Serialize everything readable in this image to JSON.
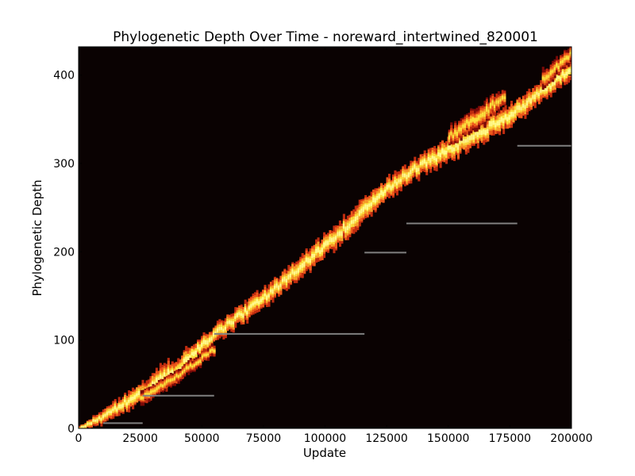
{
  "chart_data": {
    "type": "heatmap",
    "title": "Phylogenetic Depth Over Time - noreward_intertwined_820001",
    "xlabel": "Update",
    "ylabel": "Phylogenetic Depth",
    "xlim": [
      0,
      200000
    ],
    "ylim": [
      0,
      432
    ],
    "x_ticks": [
      0,
      25000,
      50000,
      75000,
      100000,
      125000,
      150000,
      175000,
      200000
    ],
    "y_ticks": [
      0,
      100,
      200,
      300,
      400
    ],
    "background_color": "#0a0202",
    "colormap": [
      "#7a0a08",
      "#c02c10",
      "#ee5a1c",
      "#f7a12a",
      "#fbe03d",
      "#fff98a"
    ],
    "grid": false,
    "legend": "none",
    "density_bands": [
      {
        "name": "main lineage",
        "points": [
          {
            "x": 0,
            "y": 0,
            "spread": 3
          },
          {
            "x": 10000,
            "y": 14,
            "spread": 7
          },
          {
            "x": 25000,
            "y": 40,
            "spread": 11
          },
          {
            "x": 40000,
            "y": 68,
            "spread": 14
          },
          {
            "x": 47000,
            "y": 88,
            "spread": 10
          },
          {
            "x": 55000,
            "y": 107,
            "spread": 9
          },
          {
            "x": 75000,
            "y": 148,
            "spread": 10
          },
          {
            "x": 100000,
            "y": 208,
            "spread": 12
          },
          {
            "x": 115000,
            "y": 245,
            "spread": 12
          },
          {
            "x": 125000,
            "y": 272,
            "spread": 11
          },
          {
            "x": 135000,
            "y": 292,
            "spread": 10
          },
          {
            "x": 150000,
            "y": 315,
            "spread": 12
          },
          {
            "x": 175000,
            "y": 355,
            "spread": 12
          },
          {
            "x": 190000,
            "y": 385,
            "spread": 10
          },
          {
            "x": 200000,
            "y": 410,
            "spread": 10
          }
        ]
      },
      {
        "name": "early side branch",
        "points": [
          {
            "x": 25000,
            "y": 35,
            "spread": 7
          },
          {
            "x": 40000,
            "y": 60,
            "spread": 7
          },
          {
            "x": 55000,
            "y": 90,
            "spread": 6
          }
        ]
      },
      {
        "name": "late side branch",
        "points": [
          {
            "x": 150000,
            "y": 330,
            "spread": 10
          },
          {
            "x": 165000,
            "y": 360,
            "spread": 12
          },
          {
            "x": 173000,
            "y": 378,
            "spread": 8
          }
        ]
      },
      {
        "name": "top branch",
        "points": [
          {
            "x": 188000,
            "y": 395,
            "spread": 10
          },
          {
            "x": 200000,
            "y": 425,
            "spread": 8
          }
        ]
      }
    ],
    "segments": [
      {
        "x1": 10000,
        "x2": 26000,
        "y": 6
      },
      {
        "x1": 26000,
        "x2": 55000,
        "y": 37
      },
      {
        "x1": 55000,
        "x2": 116000,
        "y": 107
      },
      {
        "x1": 116000,
        "x2": 133000,
        "y": 199
      },
      {
        "x1": 133000,
        "x2": 178000,
        "y": 232
      },
      {
        "x1": 178000,
        "x2": 200000,
        "y": 320
      }
    ],
    "segment_color": "#808080"
  }
}
